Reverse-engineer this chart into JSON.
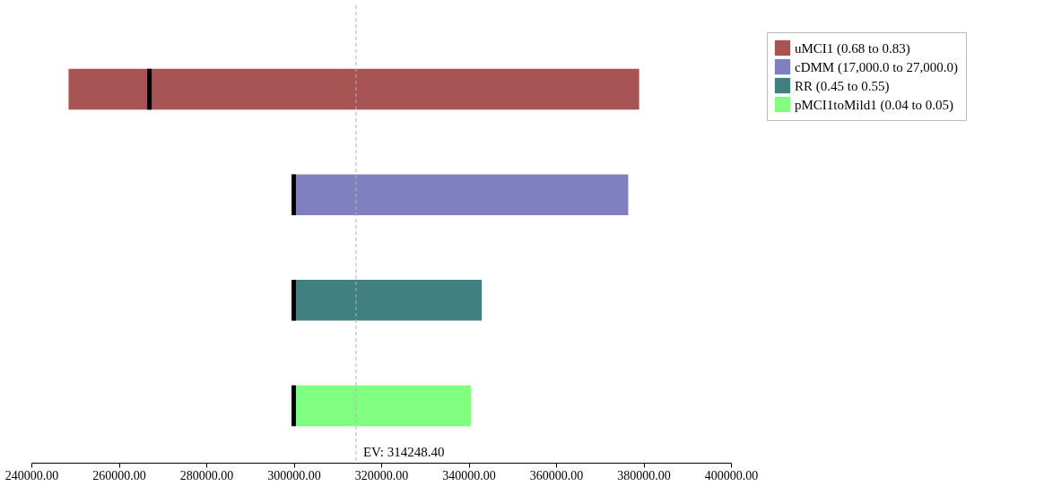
{
  "chart_data": {
    "type": "bar",
    "orientation": "horizontal",
    "categories": [
      null,
      null,
      null,
      null
    ],
    "series": [
      {
        "name": "uMCI1 (0.68 to 0.83)",
        "color": "#a85454",
        "values": [
          130500,
          null,
          null,
          null
        ],
        "base": [
          248500,
          null,
          null,
          null
        ]
      },
      {
        "name": "cDMM (17,000.0 to 27,000.0)",
        "color": "#8080c0",
        "values": [
          null,
          76500,
          null,
          null
        ],
        "base": [
          null,
          300000,
          null,
          null
        ]
      },
      {
        "name": "RR (0.45 to 0.55)",
        "color": "#408080",
        "values": [
          null,
          null,
          43000,
          null
        ],
        "base": [
          null,
          null,
          300000,
          null
        ]
      },
      {
        "name": "pMCI1toMild1 (0.04 to 0.05)",
        "color": "#80ff80",
        "values": [
          null,
          null,
          null,
          40500
        ],
        "base": [
          null,
          null,
          null,
          300000
        ]
      },
      {
        "color": "#000000",
        "values": [
          1000,
          1000,
          1000,
          1000
        ],
        "base": [
          266500,
          299500,
          299500,
          299500
        ]
      }
    ],
    "xlim": [
      240000,
      400000
    ],
    "xticks": [
      {
        "value": 240000,
        "label": "240000.00"
      },
      {
        "value": 260000,
        "label": "260000.00"
      },
      {
        "value": 280000,
        "label": "280000.00"
      },
      {
        "value": 300000,
        "label": "300000.00"
      },
      {
        "value": 320000,
        "label": "320000.00"
      },
      {
        "value": 340000,
        "label": "340000.00"
      },
      {
        "value": 360000,
        "label": "360000.00"
      },
      {
        "value": 380000,
        "label": "380000.00"
      },
      {
        "value": 400000,
        "label": "400000.00"
      }
    ],
    "ref_lines": [
      {
        "axis": "x",
        "value": 314248.4,
        "label": "EV: 314248.40",
        "color": "#b0b0b0",
        "line_style": "dashed"
      }
    ],
    "tick_labels": "x",
    "grid": false,
    "legend": "top right"
  }
}
